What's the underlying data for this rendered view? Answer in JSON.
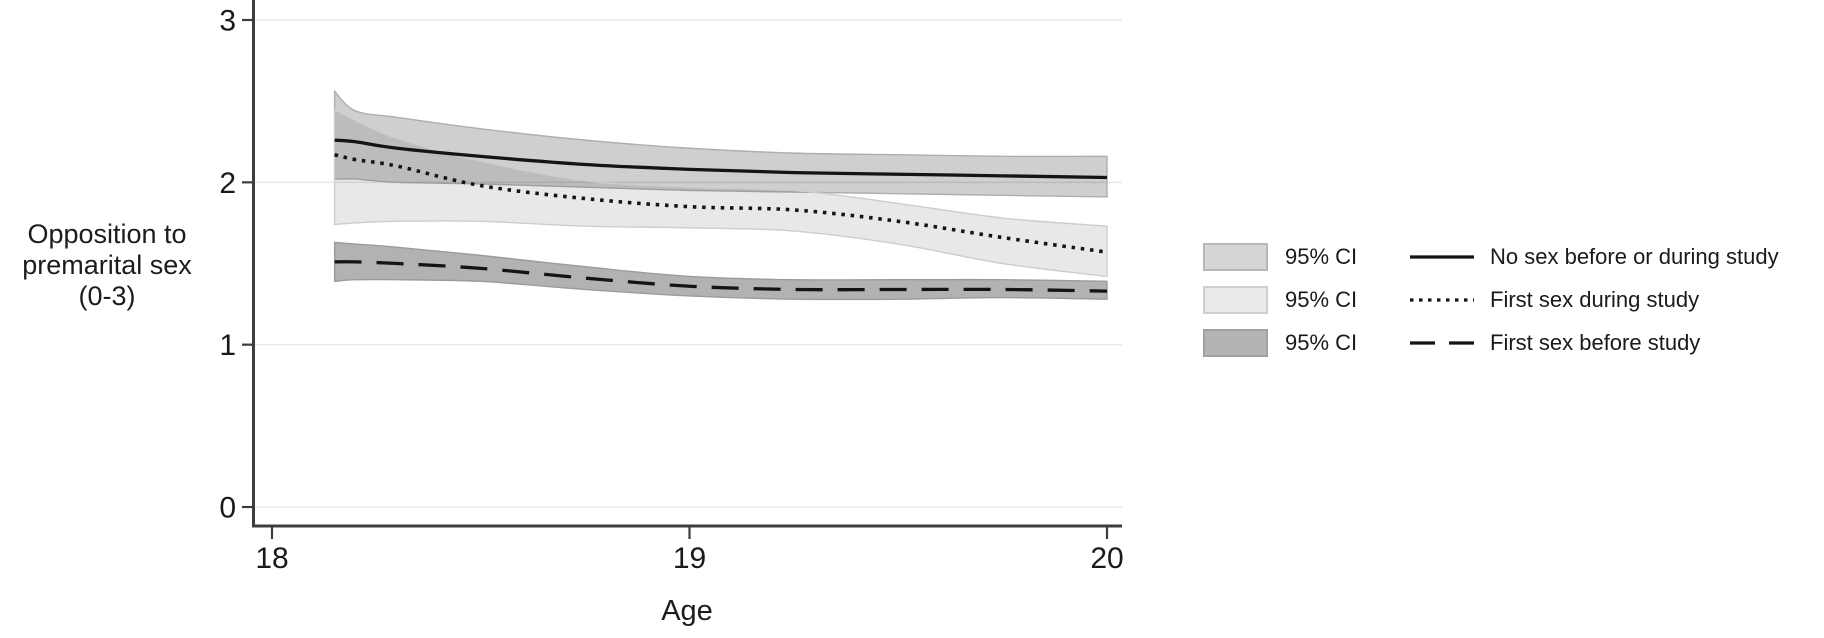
{
  "figure": {
    "xlabel": "Age",
    "ylabel_lines": [
      "Opposition to",
      "premarital sex",
      "(0-3)"
    ]
  },
  "legend": {
    "items": [
      {
        "ci_label": "95% CI",
        "series_label": "No sex before or during study",
        "line_style": "solid",
        "swatch_color": "#d6d6d6",
        "swatch_border": "#b7b7b7"
      },
      {
        "ci_label": "95% CI",
        "series_label": "First sex during study",
        "line_style": "dotted",
        "swatch_color": "#eaeaea",
        "swatch_border": "#cfcfcf"
      },
      {
        "ci_label": "95% CI",
        "series_label": "First sex before study",
        "line_style": "dashed",
        "swatch_color": "#b4b4b4",
        "swatch_border": "#a0a0a0"
      }
    ]
  },
  "chart_data": {
    "type": "line",
    "title": "",
    "xlabel": "Age",
    "ylabel": "Opposition to premarital sex (0-3)",
    "xlim": [
      18,
      20
    ],
    "ylim": [
      0,
      3
    ],
    "x_ticks": [
      18,
      19,
      20
    ],
    "y_ticks": [
      0,
      1,
      2,
      3
    ],
    "grid": true,
    "legend_position": "right",
    "x": [
      18.15,
      18.2,
      18.3,
      18.5,
      18.75,
      19.0,
      19.25,
      19.5,
      19.75,
      20.0
    ],
    "series": [
      {
        "name": "No sex before or during study",
        "line_style": "solid",
        "line_color": "#141414",
        "band_fill": "rgba(0,0,0,0.19)",
        "band_edge": "#aeaeae",
        "values": [
          2.26,
          2.25,
          2.21,
          2.16,
          2.11,
          2.08,
          2.06,
          2.05,
          2.04,
          2.03
        ],
        "ci_upper": [
          2.56,
          2.44,
          2.4,
          2.33,
          2.26,
          2.21,
          2.18,
          2.17,
          2.16,
          2.16
        ],
        "ci_lower": [
          2.02,
          2.02,
          2.0,
          1.99,
          1.97,
          1.95,
          1.94,
          1.93,
          1.92,
          1.91
        ]
      },
      {
        "name": "First sex during study",
        "line_style": "dotted",
        "line_color": "#141414",
        "band_fill": "rgba(0,0,0,0.09)",
        "band_edge": "#cdcdcd",
        "values": [
          2.17,
          2.14,
          2.1,
          1.98,
          1.9,
          1.85,
          1.83,
          1.76,
          1.66,
          1.57
        ],
        "ci_upper": [
          2.45,
          2.38,
          2.27,
          2.13,
          2.01,
          1.97,
          1.95,
          1.87,
          1.78,
          1.73
        ],
        "ci_lower": [
          1.74,
          1.75,
          1.76,
          1.76,
          1.73,
          1.72,
          1.7,
          1.62,
          1.5,
          1.42
        ]
      },
      {
        "name": "First sex before study",
        "line_style": "dashed",
        "line_color": "#141414",
        "band_fill": "rgba(0,0,0,0.30)",
        "band_edge": "#9b9b9b",
        "values": [
          1.51,
          1.51,
          1.5,
          1.47,
          1.41,
          1.36,
          1.34,
          1.34,
          1.34,
          1.33
        ],
        "ci_upper": [
          1.63,
          1.62,
          1.6,
          1.55,
          1.48,
          1.42,
          1.4,
          1.4,
          1.4,
          1.39
        ],
        "ci_lower": [
          1.39,
          1.4,
          1.4,
          1.39,
          1.34,
          1.3,
          1.28,
          1.28,
          1.29,
          1.28
        ]
      }
    ]
  }
}
